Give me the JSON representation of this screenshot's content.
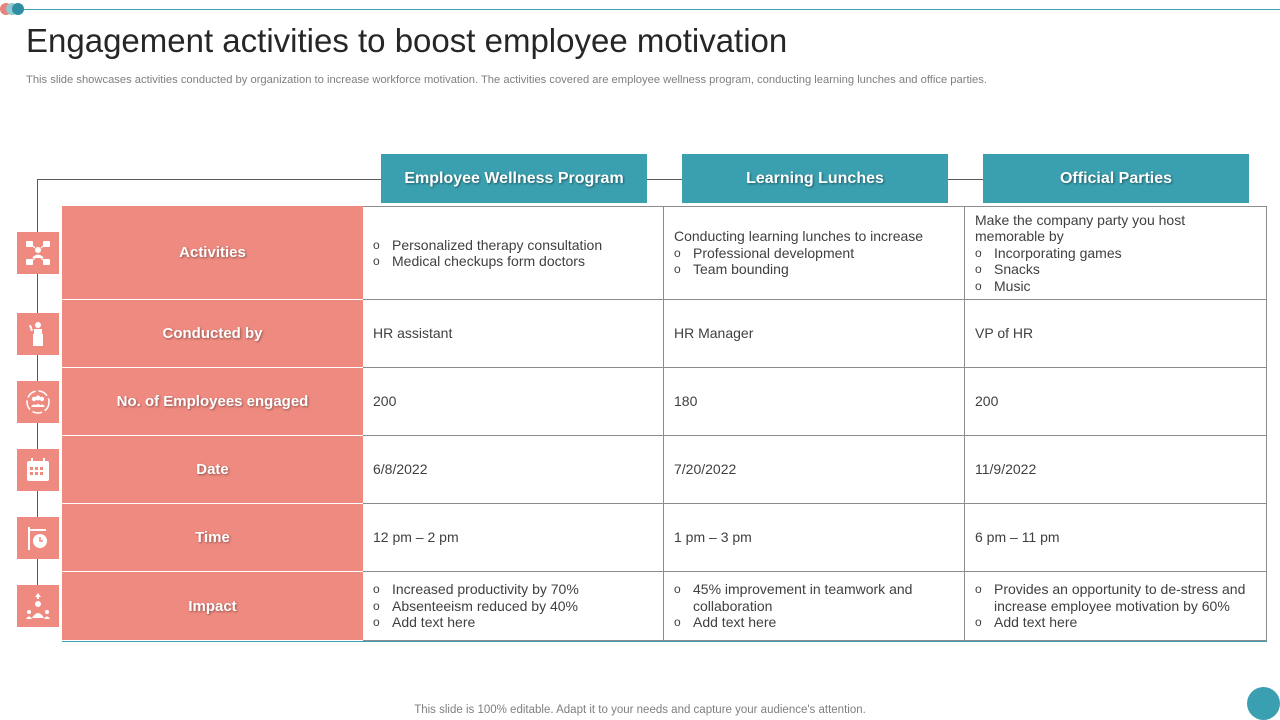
{
  "title": "Engagement activities to boost employee motivation",
  "subtitle": "This slide showcases activities conducted by organization to increase workforce motivation. The activities covered are employee wellness program, conducting learning lunches and office parties.",
  "columns": [
    "Employee Wellness Program",
    "Learning Lunches",
    "Official Parties"
  ],
  "rows": [
    {
      "label": "Activities",
      "icon": "team-network-icon",
      "cells": [
        {
          "intro": "",
          "bullets": [
            "Personalized therapy consultation",
            "Medical checkups form doctors"
          ]
        },
        {
          "intro": "Conducting learning lunches to increase",
          "bullets": [
            "Professional development",
            "Team bounding"
          ]
        },
        {
          "intro": "Make the company party you host memorable by",
          "bullets": [
            "Incorporating games",
            "Snacks",
            "Music"
          ]
        }
      ]
    },
    {
      "label": "Conducted by",
      "icon": "speaker-podium-icon",
      "cells": [
        {
          "intro": "HR assistant",
          "bullets": []
        },
        {
          "intro": "HR Manager",
          "bullets": []
        },
        {
          "intro": "VP of HR",
          "bullets": []
        }
      ]
    },
    {
      "label": "No. of Employees engaged",
      "icon": "group-cycle-icon",
      "cells": [
        {
          "intro": "200",
          "bullets": []
        },
        {
          "intro": "180",
          "bullets": []
        },
        {
          "intro": "200",
          "bullets": []
        }
      ]
    },
    {
      "label": "Date",
      "icon": "calendar-icon",
      "cells": [
        {
          "intro": "6/8/2022",
          "bullets": []
        },
        {
          "intro": "7/20/2022",
          "bullets": []
        },
        {
          "intro": "11/9/2022",
          "bullets": []
        }
      ]
    },
    {
      "label": "Time",
      "icon": "clock-sign-icon",
      "cells": [
        {
          "intro": "12 pm – 2 pm",
          "bullets": []
        },
        {
          "intro": "1 pm – 3 pm",
          "bullets": []
        },
        {
          "intro": "6 pm – 11 pm",
          "bullets": []
        }
      ]
    },
    {
      "label": "Impact",
      "icon": "growth-people-icon",
      "cells": [
        {
          "intro": "",
          "bullets": [
            "Increased productivity by 70%",
            "Absenteeism reduced by 40%",
            "Add text here"
          ]
        },
        {
          "intro": "",
          "bullets": [
            "45% improvement in teamwork and collaboration",
            "Add text here"
          ]
        },
        {
          "intro": "",
          "bullets": [
            "Provides an opportunity to de-stress and increase employee motivation by 60%",
            "Add text here"
          ]
        }
      ]
    }
  ],
  "footer": "This slide is 100% editable. Adapt it to your needs and capture your audience's attention.",
  "colors": {
    "teal": "#3aa0b0",
    "salmon": "#ef8a80",
    "text": "#404040"
  }
}
